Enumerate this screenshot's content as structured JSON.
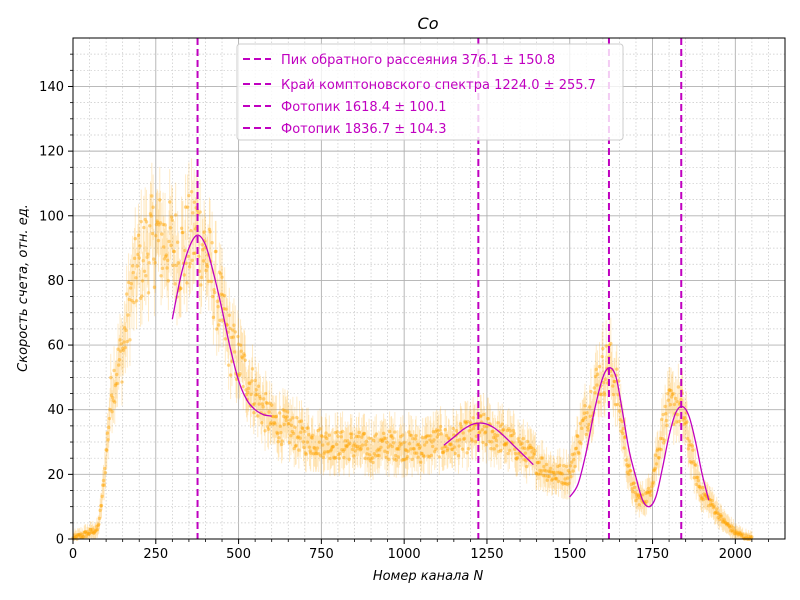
{
  "chart_data": {
    "type": "scatter",
    "title": "Co",
    "xlabel": "Номер канала N",
    "ylabel": "Скорость счета,  отн. ед.",
    "xlim": [
      0,
      2150
    ],
    "ylim": [
      0,
      155
    ],
    "xticks": [
      0,
      250,
      500,
      750,
      1000,
      1250,
      1500,
      1750,
      2000
    ],
    "xtick_labels": [
      "0",
      "250",
      "500",
      "750",
      "1000",
      "1250",
      "1500",
      "1750",
      "2000"
    ],
    "yticks": [
      0,
      20,
      40,
      60,
      80,
      100,
      120,
      140
    ],
    "ytick_labels": [
      "0",
      "20",
      "40",
      "60",
      "80",
      "100",
      "120",
      "140"
    ],
    "grid": true,
    "minor_grid": true,
    "legend_position": "top-center",
    "colors": {
      "data": "#ffa500",
      "fit": "#c000c0",
      "vlines": "#c000c0",
      "grid": "#b0b0b0"
    },
    "spectrum": {
      "name": "",
      "x": [
        0,
        25,
        50,
        75,
        85,
        95,
        105,
        115,
        125,
        150,
        175,
        200,
        225,
        250,
        275,
        300,
        325,
        350,
        375,
        400,
        425,
        450,
        475,
        500,
        525,
        550,
        575,
        600,
        650,
        700,
        750,
        800,
        850,
        900,
        950,
        1000,
        1050,
        1100,
        1150,
        1200,
        1225,
        1250,
        1300,
        1350,
        1400,
        1450,
        1500,
        1525,
        1550,
        1575,
        1600,
        1620,
        1640,
        1660,
        1680,
        1700,
        1720,
        1740,
        1760,
        1780,
        1800,
        1820,
        1840,
        1860,
        1880,
        1900,
        1920,
        1940,
        1960,
        1980,
        2000,
        2020,
        2040,
        2050
      ],
      "y": [
        0,
        1,
        2,
        3,
        10,
        20,
        32,
        45,
        50,
        58,
        75,
        85,
        90,
        93,
        92,
        90,
        88,
        92,
        96,
        88,
        80,
        70,
        60,
        55,
        50,
        45,
        40,
        36,
        34,
        31,
        30,
        29,
        29,
        28,
        29,
        29,
        28,
        30,
        30,
        32,
        34,
        33,
        31,
        28,
        24,
        20,
        20,
        30,
        38,
        46,
        52,
        54,
        48,
        34,
        20,
        13,
        12,
        14,
        24,
        34,
        40,
        42,
        40,
        30,
        20,
        14,
        12,
        9,
        6,
        4,
        2,
        1,
        0,
        0
      ]
    },
    "fits": [
      {
        "x": [
          300,
          325,
          350,
          375,
          400,
          425,
          450,
          475,
          500,
          525,
          550,
          575,
          600
        ],
        "y": [
          68,
          81,
          90,
          94,
          91,
          82,
          71,
          59,
          49,
          43,
          40,
          38.5,
          38
        ]
      },
      {
        "x": [
          1120,
          1150,
          1180,
          1210,
          1240,
          1270,
          1300,
          1330,
          1360,
          1390
        ],
        "y": [
          29,
          31.5,
          34,
          35.6,
          35.8,
          34.5,
          32,
          29,
          26,
          23
        ]
      },
      {
        "x": [
          1500,
          1525,
          1550,
          1575,
          1600,
          1620,
          1640,
          1660,
          1680,
          1700
        ],
        "y": [
          13,
          17,
          27,
          40,
          50,
          53,
          50,
          39,
          27,
          19
        ]
      },
      {
        "x": [
          1700,
          1720,
          1740,
          1760,
          1780,
          1800,
          1820,
          1840,
          1860,
          1880,
          1900,
          1920
        ],
        "y": [
          19,
          12,
          10,
          13,
          22,
          32,
          39,
          41,
          38,
          30,
          20,
          12
        ]
      }
    ],
    "vlines": [
      {
        "x": 376.1,
        "label": "Пик обратного рассеяния 376.1 ± 150.8"
      },
      {
        "x": 1224.0,
        "label": "Край комптоновского спектра 1224.0 ± 255.7"
      },
      {
        "x": 1618.4,
        "label": "Фотопик 1618.4 ± 100.1"
      },
      {
        "x": 1836.7,
        "label": "Фотопик 1836.7 ± 104.3"
      }
    ]
  }
}
